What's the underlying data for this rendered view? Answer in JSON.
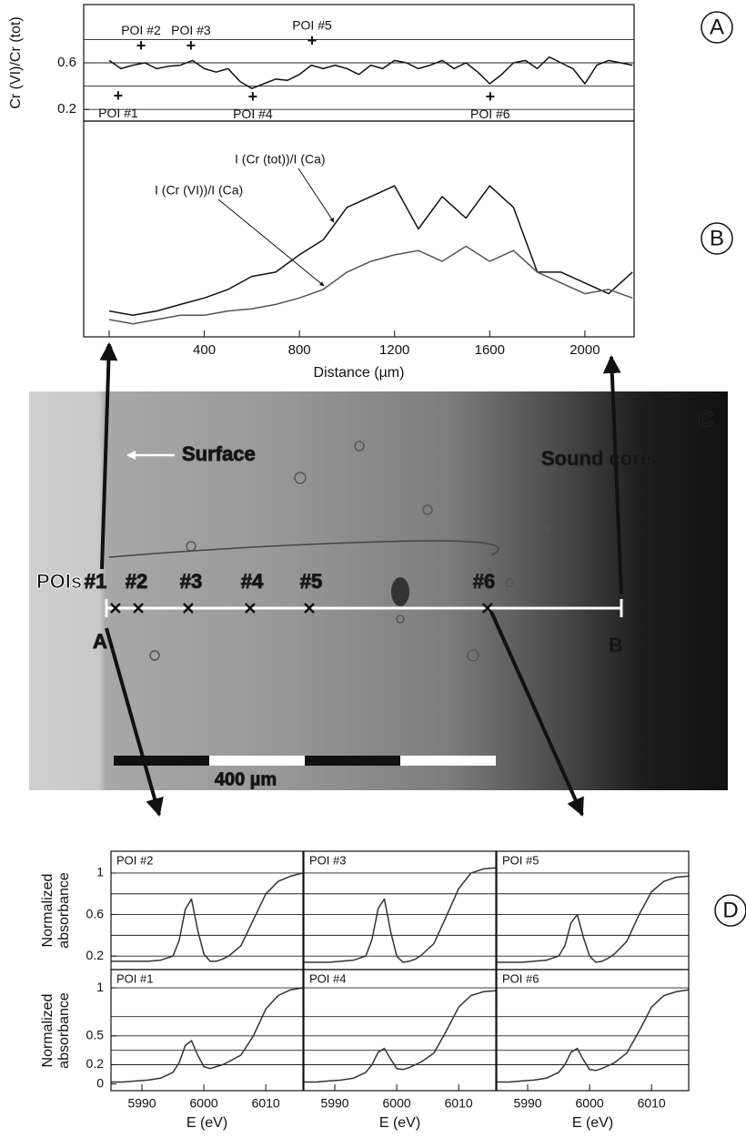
{
  "panel_labels": [
    "A",
    "B",
    "C",
    "D"
  ],
  "chart_data": [
    {
      "type": "line",
      "ylabel": "Cr (VI)/Cr (tot)",
      "x": [
        0,
        50,
        100,
        150,
        200,
        250,
        300,
        350,
        400,
        450,
        500,
        550,
        600,
        650,
        700,
        750,
        800,
        850,
        900,
        950,
        1000,
        1050,
        1100,
        1150,
        1200,
        1250,
        1300,
        1350,
        1400,
        1450,
        1500,
        1550,
        1600,
        1650,
        1700,
        1750,
        1800,
        1850,
        1900,
        1950,
        2000,
        2050,
        2100,
        2150,
        2200
      ],
      "series": [
        {
          "color": "#111111",
          "values": [
            0.62,
            0.55,
            0.58,
            0.6,
            0.55,
            0.57,
            0.58,
            0.62,
            0.55,
            0.52,
            0.55,
            0.44,
            0.38,
            0.42,
            0.46,
            0.45,
            0.5,
            0.58,
            0.55,
            0.58,
            0.55,
            0.5,
            0.58,
            0.55,
            0.62,
            0.6,
            0.55,
            0.58,
            0.62,
            0.55,
            0.6,
            0.52,
            0.42,
            0.5,
            0.6,
            0.62,
            0.55,
            0.65,
            0.6,
            0.55,
            0.42,
            0.58,
            0.62,
            0.6,
            0.58
          ]
        }
      ],
      "xlim": [
        -107,
        2207
      ],
      "ylim": [
        0.1,
        1.1
      ],
      "yticks": [
        0.2,
        0.6
      ],
      "hlines": [
        0.2,
        0.4,
        0.6,
        0.8
      ],
      "annotations": [
        {
          "label": "POI #1",
          "x": 38,
          "y": 0.31
        },
        {
          "label": "POI #2",
          "x": 134,
          "y": 0.74
        },
        {
          "label": "POI #3",
          "x": 344,
          "y": 0.74
        },
        {
          "label": "POI #4",
          "x": 604,
          "y": 0.3
        },
        {
          "label": "POI #5",
          "x": 853,
          "y": 0.78
        },
        {
          "label": "POI #6",
          "x": 1602,
          "y": 0.3
        }
      ]
    },
    {
      "type": "line",
      "xlabel": "Distance (µm)",
      "x": [
        0,
        100,
        200,
        300,
        400,
        500,
        600,
        700,
        800,
        900,
        1000,
        1100,
        1200,
        1300,
        1400,
        1500,
        1600,
        1700,
        1800,
        1900,
        2000,
        2100,
        2200
      ],
      "series": [
        {
          "name": "I (Cr (tot))/I (Ca)",
          "color": "#111111",
          "values": [
            0.12,
            0.1,
            0.12,
            0.15,
            0.18,
            0.22,
            0.28,
            0.3,
            0.38,
            0.45,
            0.6,
            0.65,
            0.7,
            0.5,
            0.65,
            0.55,
            0.7,
            0.6,
            0.3,
            0.3,
            0.25,
            0.2,
            0.3
          ]
        },
        {
          "name": "I (Cr (VI))/I (Ca)",
          "color": "#555555",
          "values": [
            0.08,
            0.06,
            0.08,
            0.1,
            0.1,
            0.12,
            0.13,
            0.15,
            0.18,
            0.22,
            0.3,
            0.35,
            0.38,
            0.4,
            0.35,
            0.42,
            0.35,
            0.4,
            0.3,
            0.25,
            0.2,
            0.22,
            0.18
          ]
        }
      ],
      "xlim": [
        -107,
        2207
      ],
      "xticks": [
        0,
        400,
        800,
        1200,
        1600,
        2000
      ],
      "ylim": [
        0,
        1
      ]
    },
    {
      "type": "line",
      "title": "POI #2",
      "ylabel": "Normalized absorbance",
      "x": [
        5985,
        5987,
        5989,
        5991,
        5993,
        5995,
        5996,
        5997,
        5998,
        5999,
        6000,
        6001,
        6002,
        6003,
        6004,
        6006,
        6008,
        6010,
        6012,
        6014,
        6016
      ],
      "series": [
        {
          "color": "#333333",
          "values": [
            0.15,
            0.15,
            0.15,
            0.15,
            0.16,
            0.2,
            0.35,
            0.65,
            0.75,
            0.45,
            0.22,
            0.15,
            0.15,
            0.17,
            0.2,
            0.3,
            0.55,
            0.8,
            0.92,
            0.97,
            1.0
          ]
        }
      ],
      "xlim": [
        5985,
        6016
      ],
      "ylim": [
        0.07,
        1.21
      ],
      "yticks": [
        0.2,
        0.6,
        1
      ],
      "hlines": [
        0.2,
        0.4,
        0.6,
        0.8,
        1
      ]
    },
    {
      "type": "line",
      "title": "POI #3",
      "x": [
        5985,
        5987,
        5989,
        5991,
        5993,
        5995,
        5996,
        5997,
        5998,
        5999,
        6000,
        6001,
        6002,
        6003,
        6004,
        6006,
        6008,
        6010,
        6012,
        6014,
        6016
      ],
      "series": [
        {
          "color": "#333333",
          "values": [
            0.14,
            0.14,
            0.14,
            0.15,
            0.16,
            0.2,
            0.36,
            0.66,
            0.75,
            0.44,
            0.2,
            0.14,
            0.15,
            0.17,
            0.21,
            0.32,
            0.58,
            0.85,
            1.0,
            1.04,
            1.05
          ]
        }
      ],
      "xlim": [
        5985,
        6016
      ],
      "ylim": [
        0.07,
        1.21
      ],
      "hlines": [
        0.2,
        0.4,
        0.6,
        0.8,
        1
      ]
    },
    {
      "type": "line",
      "title": "POI #5",
      "x": [
        5985,
        5987,
        5989,
        5991,
        5993,
        5995,
        5996,
        5997,
        5998,
        5999,
        6000,
        6001,
        6002,
        6003,
        6004,
        6006,
        6008,
        6010,
        6012,
        6014,
        6016
      ],
      "series": [
        {
          "color": "#333333",
          "values": [
            0.14,
            0.14,
            0.14,
            0.15,
            0.16,
            0.2,
            0.3,
            0.52,
            0.6,
            0.38,
            0.2,
            0.14,
            0.15,
            0.18,
            0.22,
            0.34,
            0.6,
            0.82,
            0.92,
            0.96,
            0.97
          ]
        }
      ],
      "xlim": [
        5985,
        6016
      ],
      "ylim": [
        0.07,
        1.21
      ],
      "hlines": [
        0.2,
        0.4,
        0.6,
        0.8,
        1
      ]
    },
    {
      "type": "line",
      "title": "POI #1",
      "ylabel": "Normalized absorbance",
      "x": [
        5985,
        5987,
        5989,
        5991,
        5993,
        5995,
        5996,
        5997,
        5998,
        5999,
        6000,
        6001,
        6002,
        6003,
        6004,
        6006,
        6008,
        6010,
        6012,
        6014,
        6016
      ],
      "series": [
        {
          "color": "#333333",
          "values": [
            0.02,
            0.02,
            0.03,
            0.04,
            0.06,
            0.12,
            0.22,
            0.4,
            0.45,
            0.3,
            0.18,
            0.16,
            0.18,
            0.2,
            0.23,
            0.3,
            0.5,
            0.78,
            0.92,
            0.98,
            1.0
          ]
        }
      ],
      "xlim": [
        5985,
        6016
      ],
      "ylim": [
        -0.07,
        1.19
      ],
      "xticks": [
        5990,
        6000,
        6010
      ],
      "yticks": [
        0,
        0.2,
        0.5,
        1
      ],
      "hlines": [
        0.2,
        0.35,
        0.5,
        0.7,
        1
      ],
      "xlabel": "E (eV)"
    },
    {
      "type": "line",
      "title": "POI #4",
      "x": [
        5985,
        5987,
        5989,
        5991,
        5993,
        5995,
        5996,
        5997,
        5998,
        5999,
        6000,
        6001,
        6002,
        6003,
        6004,
        6006,
        6008,
        6010,
        6012,
        6014,
        6016
      ],
      "series": [
        {
          "color": "#333333",
          "values": [
            0.02,
            0.02,
            0.03,
            0.04,
            0.06,
            0.12,
            0.2,
            0.33,
            0.37,
            0.26,
            0.16,
            0.15,
            0.17,
            0.2,
            0.23,
            0.32,
            0.55,
            0.8,
            0.92,
            0.96,
            0.97
          ]
        }
      ],
      "xlim": [
        5985,
        6016
      ],
      "ylim": [
        -0.07,
        1.19
      ],
      "xticks": [
        5990,
        6000,
        6010
      ],
      "hlines": [
        0.2,
        0.35,
        0.5,
        0.7,
        1
      ],
      "xlabel": "E (eV)"
    },
    {
      "type": "line",
      "title": "POI #6",
      "x": [
        5985,
        5987,
        5989,
        5991,
        5993,
        5995,
        5996,
        5997,
        5998,
        5999,
        6000,
        6001,
        6002,
        6003,
        6004,
        6006,
        6008,
        6010,
        6012,
        6014,
        6016
      ],
      "series": [
        {
          "color": "#333333",
          "values": [
            0.02,
            0.02,
            0.03,
            0.04,
            0.06,
            0.12,
            0.2,
            0.33,
            0.37,
            0.25,
            0.15,
            0.14,
            0.16,
            0.19,
            0.22,
            0.32,
            0.55,
            0.8,
            0.92,
            0.96,
            0.98
          ]
        }
      ],
      "xlim": [
        5985,
        6016
      ],
      "ylim": [
        -0.07,
        1.19
      ],
      "xticks": [
        5990,
        6000,
        6010
      ],
      "hlines": [
        0.2,
        0.35,
        0.5,
        0.7,
        1
      ],
      "xlabel": "E (eV)"
    }
  ],
  "micrograph": {
    "surface": "Surface",
    "core": "Sound core",
    "pois": "POIs",
    "start": "A",
    "end": "B",
    "scale": "400 µm",
    "poi_labels": [
      "#1",
      "#2",
      "#3",
      "#4",
      "#5",
      "#6"
    ]
  }
}
